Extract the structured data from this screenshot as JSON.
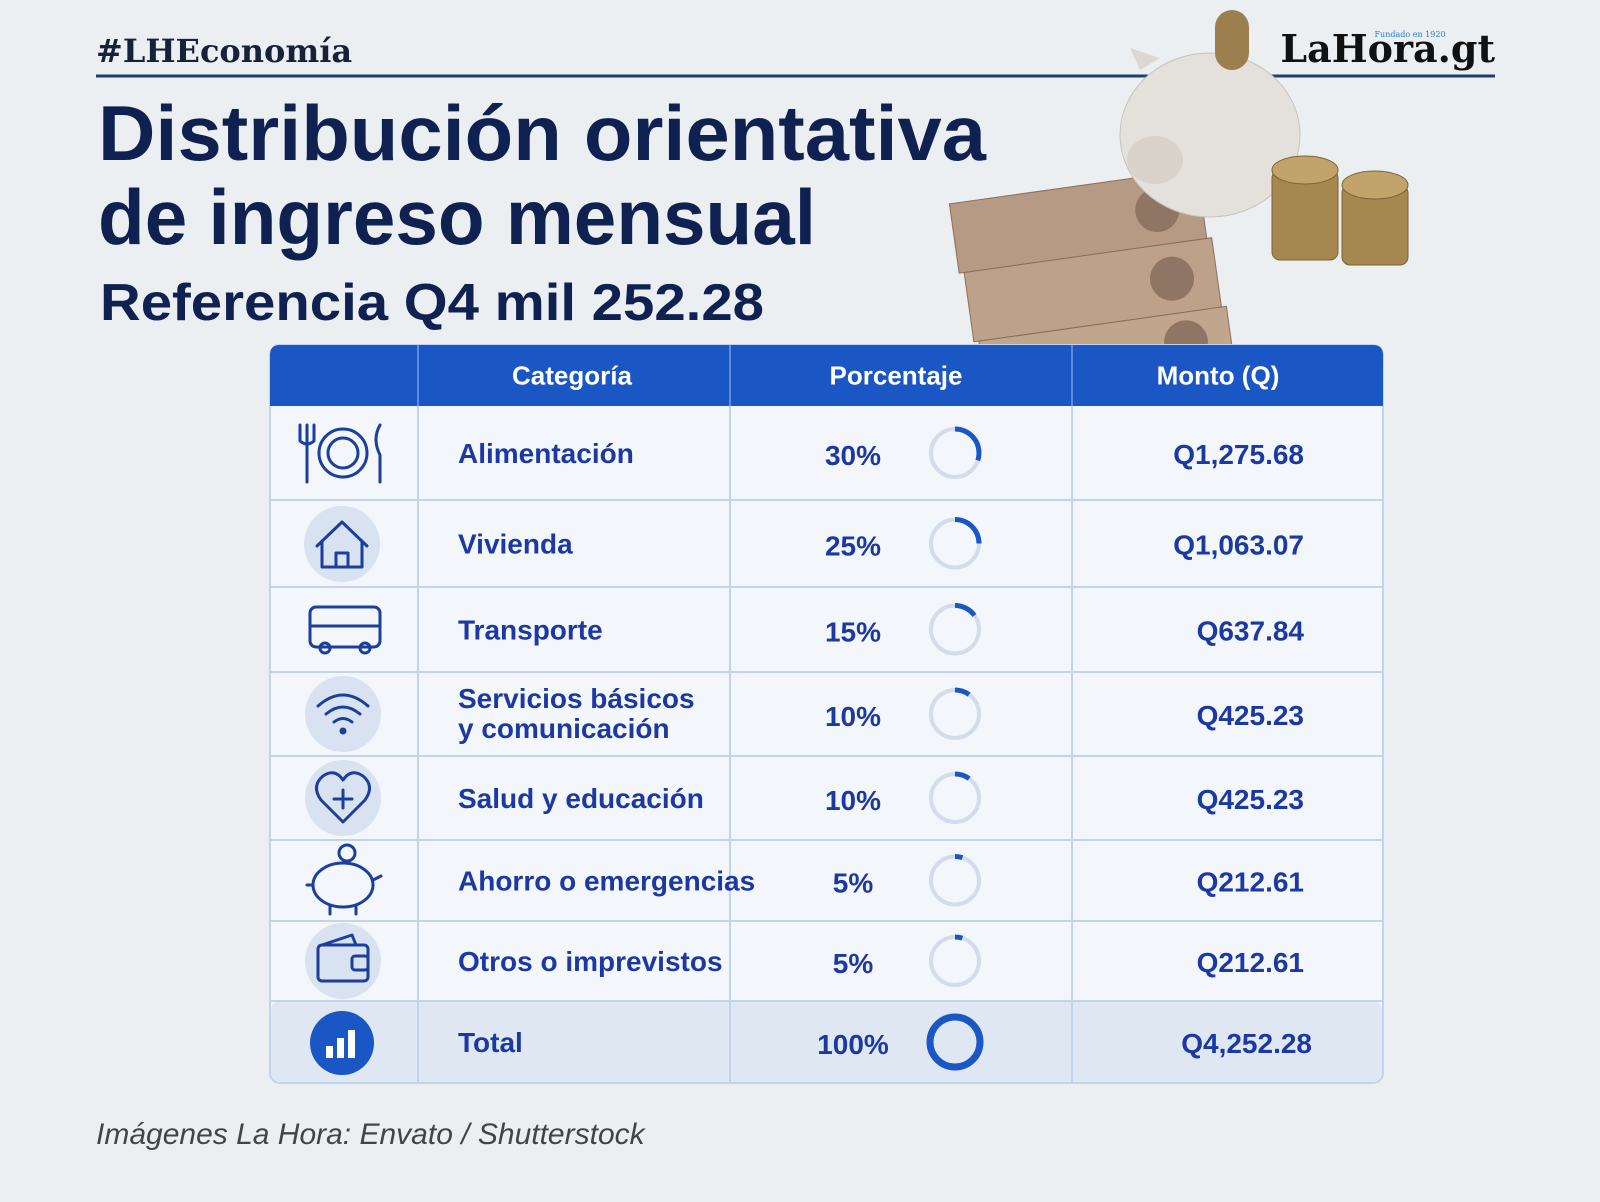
{
  "header": {
    "hashtag": "#LHEconomía",
    "logo": "LaHora.gt",
    "logo_tagline": "Fundado en 1920"
  },
  "title": [
    "Distribución orientativa",
    "de ingreso mensual"
  ],
  "subtitle": "Referencia Q4 mil 252.28",
  "table": {
    "columns": [
      "Categoría",
      "Porcentaje",
      "Monto (Q)"
    ],
    "rows": [
      {
        "category": "Alimentación",
        "percent": {
          "value": 30,
          "label": "30%"
        },
        "amount": "Q1,275.68"
      },
      {
        "category": "Vivienda",
        "percent": {
          "value": 25,
          "label": "25%"
        },
        "amount": "Q1,063.07"
      },
      {
        "category": "Transporte",
        "percent": {
          "value": 15,
          "label": "15%"
        },
        "amount": "Q637.84"
      },
      {
        "category": [
          "Servicios básicos",
          "y comunicación"
        ],
        "percent": {
          "value": 10,
          "label": "10%"
        },
        "amount": "Q425.23"
      },
      {
        "category": "Salud y educación",
        "percent": {
          "value": 10,
          "label": "10%"
        },
        "amount": "Q425.23"
      },
      {
        "category": "Ahorro o emergencias",
        "percent": {
          "value": 5,
          "label": "5%"
        },
        "amount": "Q212.61"
      },
      {
        "category": "Otros o imprevistos",
        "percent": {
          "value": 5,
          "label": "5%"
        },
        "amount": "Q212.61"
      }
    ],
    "total": {
      "category": "Total",
      "percent": {
        "value": 100,
        "label": "100%"
      },
      "amount": "Q4,252.28"
    }
  },
  "footer": "Imágenes La Hora: Envato / Shutterstock"
}
